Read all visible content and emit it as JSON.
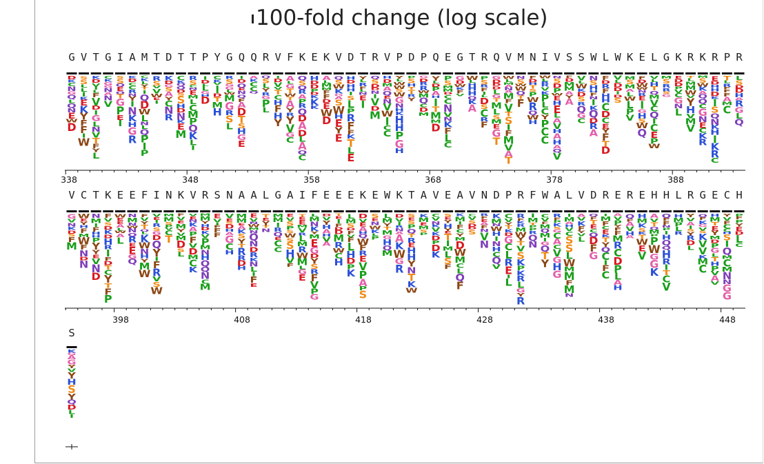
{
  "title": "100-fold change (log scale)",
  "rows": [
    {
      "start": 338,
      "sequence": "GVTGIAMTDTTPYGQQRVFKEKVDTRVPDPQEGTRQVMNIVSSWLWKELGKRKRPR",
      "tick_labels": [
        "338",
        "348",
        "358",
        "368",
        "378",
        "388"
      ]
    },
    {
      "start": 394,
      "sequence": "VCTKEEFINKVRSNAALGAIFEEEKEWKTAVEAVNDPRFWALVDREREHHLRGECH",
      "tick_labels": [
        "398",
        "408",
        "418",
        "428",
        "438",
        "448"
      ]
    },
    {
      "start": 450,
      "sequence": "S",
      "tick_labels": []
    }
  ],
  "colors": {
    "green": "#1a9e1a",
    "blue": "#2a4fd6",
    "red": "#d71920",
    "orange": "#f08a16",
    "pink": "#e45fa8",
    "brown": "#8b4513",
    "purple": "#7e3fb8",
    "teal": "#1f9aa5"
  }
}
